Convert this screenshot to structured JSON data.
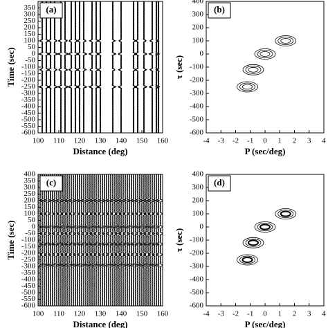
{
  "chart_data": [
    {
      "type": "wiggle",
      "label": "(a)",
      "xlabel": "Distance (deg)",
      "ylabel": "Time (sec)",
      "x": [
        102,
        104,
        106,
        108,
        111,
        113,
        116,
        118,
        120,
        122,
        126,
        128,
        130,
        136,
        140,
        146,
        148,
        151,
        155,
        157,
        158
      ],
      "events": [
        -250,
        -120,
        0,
        100
      ],
      "xlim": [
        100,
        160
      ],
      "xticks": [
        100,
        110,
        120,
        130,
        140,
        150,
        160
      ],
      "ylim": [
        -600,
        400
      ],
      "yticks": [
        -600,
        -550,
        -500,
        -450,
        -400,
        -350,
        -300,
        -250,
        -200,
        -150,
        -100,
        -50,
        0,
        50,
        100,
        150,
        200,
        250,
        300,
        350
      ]
    },
    {
      "type": "contour",
      "label": "(b)",
      "xlabel": "P (sec/deg)",
      "ylabel": "τ (sec)",
      "x": [
        -1.2,
        -0.8,
        0,
        1.4
      ],
      "values": [
        -250,
        -120,
        0,
        100
      ],
      "xlim": [
        -4,
        4
      ],
      "xticks": [
        -4,
        -3,
        -2,
        -1,
        0,
        1,
        2,
        3,
        4
      ],
      "ylim": [
        -600,
        400
      ],
      "yticks": [
        -600,
        -500,
        -400,
        -300,
        -200,
        -100,
        0,
        100,
        200,
        300,
        400
      ]
    },
    {
      "type": "wiggle",
      "label": "(c)",
      "xlabel": "Distance (deg)",
      "ylabel": "Time (sec)",
      "x": [
        100,
        101,
        102,
        103,
        104,
        105,
        106,
        107,
        108,
        109,
        110,
        111,
        112,
        113,
        114,
        115,
        116,
        117,
        118,
        119,
        120,
        121,
        122,
        123,
        124,
        125,
        126,
        127,
        128,
        129,
        130,
        131,
        132,
        133,
        134,
        135,
        136,
        137,
        138,
        139,
        140,
        141,
        142,
        143,
        144,
        145,
        146,
        147,
        148,
        149,
        150,
        151,
        152,
        153,
        154,
        155,
        156,
        157,
        158,
        159
      ],
      "events": [
        -290,
        -210,
        -130,
        -50,
        0,
        100,
        200
      ],
      "xlim": [
        100,
        160
      ],
      "xticks": [
        100,
        110,
        120,
        130,
        140,
        150,
        160
      ],
      "ylim": [
        -600,
        400
      ],
      "yticks": [
        -600,
        -550,
        -500,
        -450,
        -400,
        -350,
        -300,
        -250,
        -200,
        -150,
        -100,
        -50,
        0,
        50,
        100,
        150,
        200,
        250,
        300,
        350,
        400
      ]
    },
    {
      "type": "contour",
      "label": "(d)",
      "xlabel": "P (sec/deg)",
      "ylabel": "τ (sec)",
      "x": [
        -1.2,
        -0.8,
        0,
        1.4
      ],
      "values": [
        -250,
        -120,
        0,
        100
      ],
      "xlim": [
        -4,
        4
      ],
      "xticks": [
        -4,
        -3,
        -2,
        -1,
        0,
        1,
        2,
        3,
        4
      ],
      "ylim": [
        -600,
        400
      ],
      "yticks": [
        -600,
        -500,
        -400,
        -300,
        -200,
        -100,
        0,
        100,
        200,
        300,
        400
      ]
    }
  ]
}
